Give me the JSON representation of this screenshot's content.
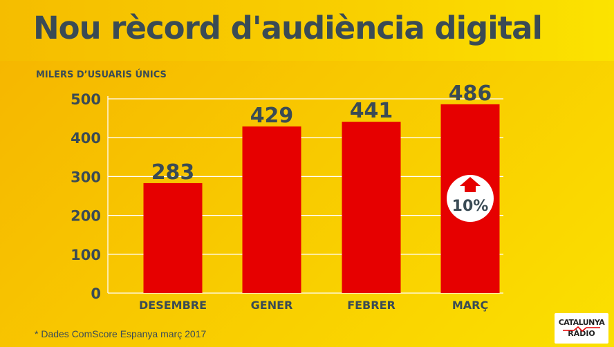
{
  "title": "Nou rècord d'audiència digital",
  "footnote": "* Dades ComScore Espanya març 2017",
  "logo": {
    "line1": "CATALUNYA",
    "line2": "RÀDIO"
  },
  "colors": {
    "bar": "#e60000",
    "text": "#3a4b55",
    "grid": "#ffffff",
    "badge": "#ffffff"
  },
  "chart_data": {
    "type": "bar",
    "title": "Nou rècord d'audiència digital",
    "ylabel": "MILERS D’USUARIS ÚNICS",
    "xlabel": "",
    "categories": [
      "DESEMBRE",
      "GENER",
      "FEBRER",
      "MARÇ"
    ],
    "values": [
      283,
      429,
      441,
      486
    ],
    "ylim": [
      0,
      500
    ],
    "yticks": [
      0,
      100,
      200,
      300,
      400,
      500
    ],
    "grid": true,
    "legend": "none",
    "annotations": [
      {
        "category": "MARÇ",
        "text": "10%",
        "icon": "arrow-up-icon"
      }
    ]
  }
}
